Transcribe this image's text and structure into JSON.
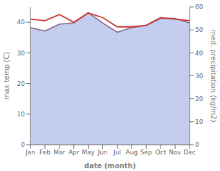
{
  "chart_data": {
    "type": "line",
    "categories": [
      "Jan",
      "Feb",
      "Mar",
      "Apr",
      "May",
      "Jun",
      "Jul",
      "Aug",
      "Sep",
      "Oct",
      "Nov",
      "Dec"
    ],
    "series": [
      {
        "type": "area",
        "axis": "y2",
        "color": "#b0bce8",
        "values": [
          51.0,
          49.5,
          52.5,
          53.0,
          57.5,
          53.0,
          49.0,
          51.0,
          52.0,
          55.0,
          55.0,
          53.0
        ]
      },
      {
        "type": "line",
        "axis": "y2",
        "color": "#8b7095",
        "values": [
          51.0,
          49.5,
          52.5,
          53.0,
          57.5,
          53.0,
          49.0,
          51.0,
          52.0,
          55.0,
          55.0,
          53.0
        ]
      },
      {
        "type": "line",
        "color": "#cc3333",
        "values": [
          41.0,
          40.5,
          42.5,
          40.0,
          43.0,
          41.5,
          38.5,
          38.5,
          39.0,
          41.5,
          41.0,
          40.5
        ]
      }
    ],
    "x_label": "date (month)",
    "y_label": "max temp (C)",
    "y2_label": "med. precipitation (kg/m2)",
    "ylim": [
      0,
      45
    ],
    "yticks": [
      0,
      10,
      20,
      30,
      40
    ],
    "y2lim": [
      0,
      60
    ],
    "y2ticks": [
      0,
      10,
      20,
      30,
      40,
      50,
      60
    ],
    "grid": false
  }
}
